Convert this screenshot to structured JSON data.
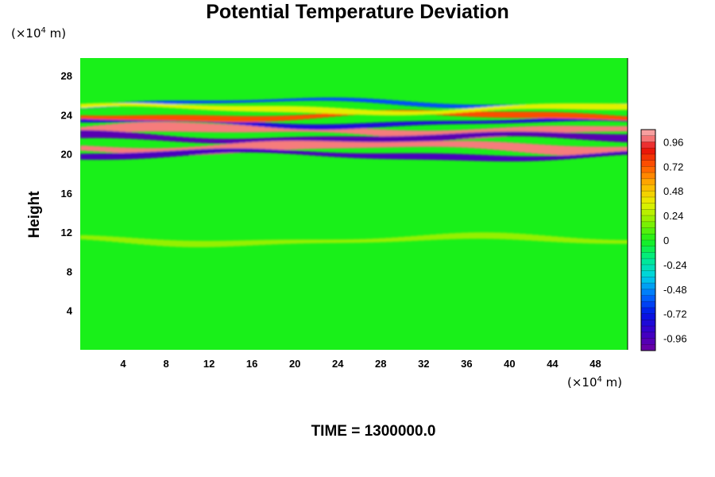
{
  "chart_data": {
    "type": "heatmap",
    "title": "Potential Temperature Deviation",
    "ylabel": "Height",
    "x_unit": [
      "(×10",
      "4",
      " m)"
    ],
    "y_unit": [
      "(×10",
      "4",
      " m)"
    ],
    "xticks": [
      4,
      8,
      12,
      16,
      20,
      24,
      28,
      32,
      36,
      40,
      44,
      48
    ],
    "yticks": [
      4,
      8,
      12,
      16,
      20,
      24,
      28
    ],
    "xlim": [
      0,
      51
    ],
    "ylim": [
      0,
      29.8
    ],
    "colorbar": {
      "labels": [
        "0.96",
        "0.72",
        "0.48",
        "0.24",
        "0",
        "-0.24",
        "-0.48",
        "-0.72",
        "-0.96"
      ],
      "range": [
        -1.08,
        1.08
      ]
    },
    "background_value": 0.0,
    "features": [
      {
        "desc": "pink/white band",
        "y_center": 22.4,
        "thickness": 0.9,
        "value": 1.0
      },
      {
        "desc": "purple band",
        "y_center": 21.6,
        "thickness": 0.8,
        "value": -1.0
      },
      {
        "desc": "pink/white band",
        "y_center": 20.7,
        "thickness": 0.9,
        "value": 1.0
      },
      {
        "desc": "purple band",
        "y_center": 19.9,
        "thickness": 0.6,
        "value": -0.95
      },
      {
        "desc": "blue band",
        "y_center": 23.2,
        "thickness": 0.5,
        "value": -0.8
      },
      {
        "desc": "red band",
        "y_center": 23.9,
        "thickness": 0.6,
        "value": 0.75
      },
      {
        "desc": "blue band",
        "y_center": 25.2,
        "thickness": 0.4,
        "value": -0.6
      },
      {
        "desc": "yellow band",
        "y_center": 24.6,
        "thickness": 0.6,
        "value": 0.35
      },
      {
        "desc": "yellow weak band",
        "y_center": 11.2,
        "thickness": 0.6,
        "value": 0.2
      }
    ],
    "time_label": "TIME = 1300000.0"
  }
}
